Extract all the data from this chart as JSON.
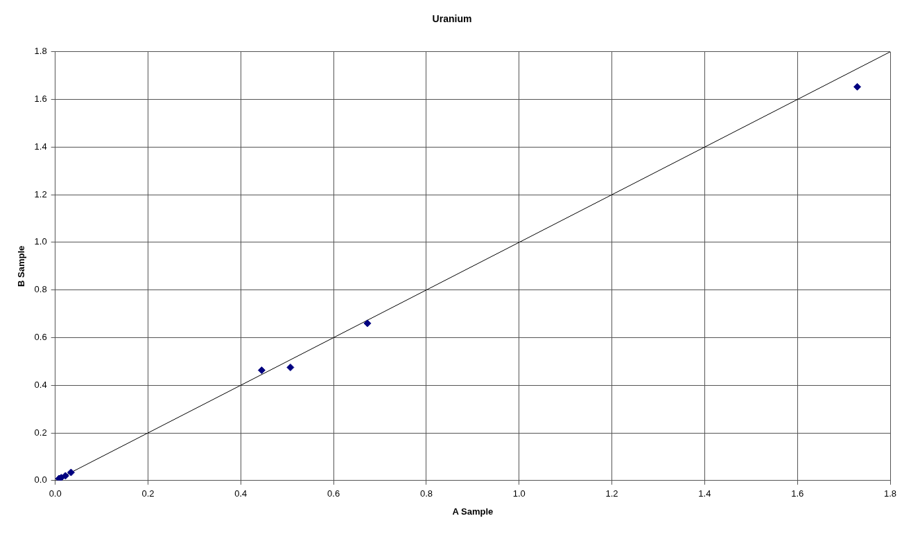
{
  "chart_data": {
    "type": "scatter",
    "title": "Uranium",
    "xlabel": "A Sample",
    "ylabel": "B Sample",
    "marker": "diamond",
    "grid": true,
    "legend": false,
    "xlim": [
      0,
      1.8
    ],
    "xticks": [
      {
        "value": 0,
        "label": "0.0"
      },
      0.2,
      0.4,
      0.6,
      0.8,
      {
        "value": 1,
        "label": "1.0"
      },
      1.2,
      1.4,
      1.6,
      1.8
    ],
    "ylim": [
      0,
      1.8
    ],
    "yticks": [
      {
        "value": 0,
        "label": "0.0"
      },
      0.2,
      0.4,
      0.6,
      0.8,
      {
        "value": 1,
        "label": "1.0"
      },
      1.2,
      1.4,
      1.6,
      1.8
    ],
    "series": [
      {
        "color": "#000080",
        "x": [
          0.008,
          0.013,
          0.022,
          0.034,
          0.445,
          0.507,
          0.673,
          1.729
        ],
        "values": [
          0.008,
          0.012,
          0.02,
          0.034,
          0.463,
          0.475,
          0.66,
          1.653
        ]
      },
      {
        "type": "line",
        "marker": "none",
        "color": "#000000",
        "x": [
          0,
          1.8
        ],
        "values": [
          0,
          1.8
        ]
      }
    ]
  }
}
